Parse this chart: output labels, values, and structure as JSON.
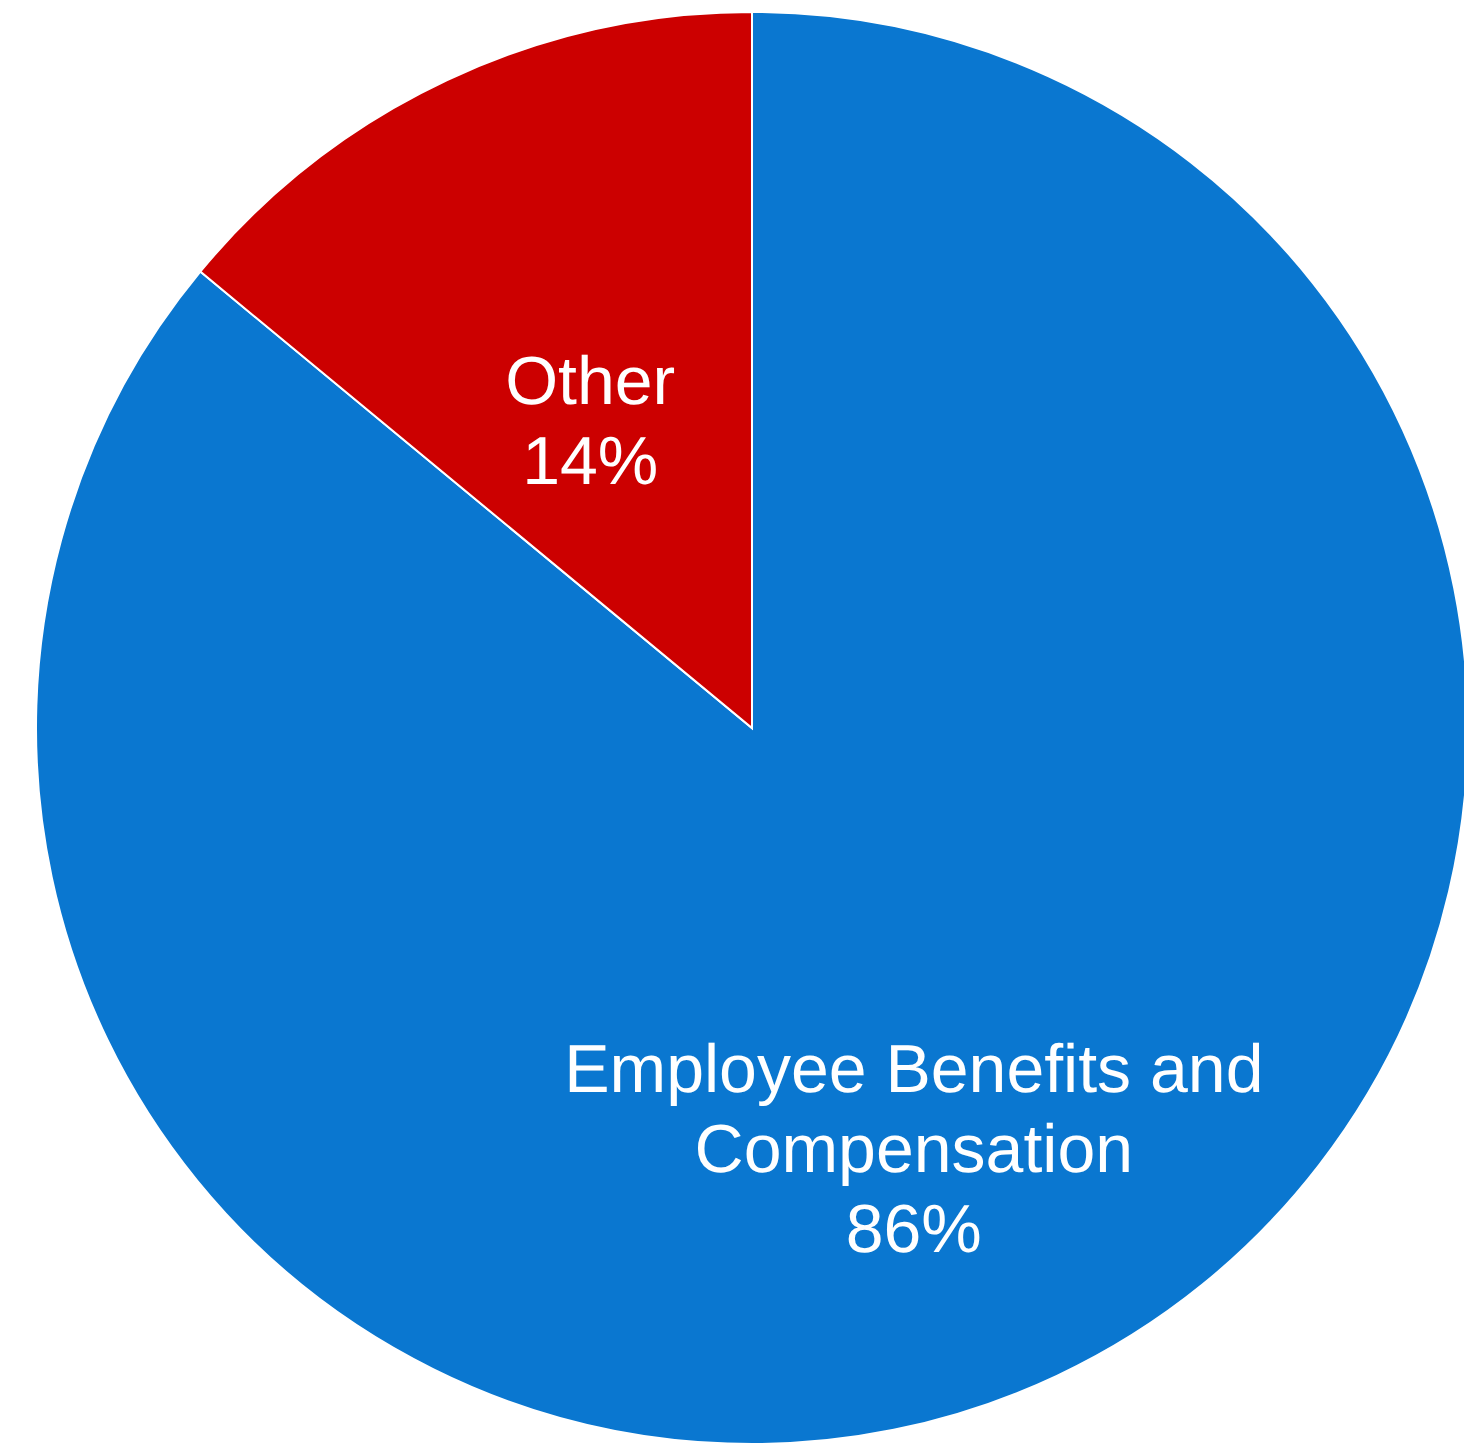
{
  "chart_data": {
    "type": "pie",
    "categories": [
      "Employee Benefits and Compensation",
      "Other"
    ],
    "values": [
      86,
      14
    ],
    "colors": [
      "#0a77d0",
      "#cc0000"
    ],
    "value_labels": [
      "86%",
      "14%"
    ]
  }
}
